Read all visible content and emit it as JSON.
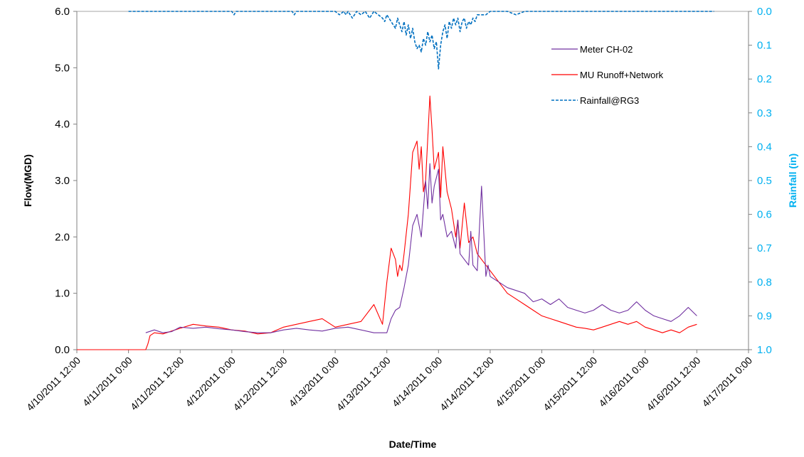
{
  "chart_data": {
    "type": "line",
    "xlabel": "Date/Time",
    "ylabel": "Flow(MGD)",
    "y2label": "Rainfall (in)",
    "ylim": [
      0,
      6
    ],
    "y2lim": [
      0,
      1.0
    ],
    "y2_inverted": true,
    "y_ticks": [
      "0.0",
      "1.0",
      "2.0",
      "3.0",
      "4.0",
      "5.0",
      "6.0"
    ],
    "y2_ticks": [
      "0.0",
      "0.1",
      "0.2",
      "0.3",
      "0.4",
      "0.5",
      "0.6",
      "0.7",
      "0.8",
      "0.9",
      "1.0"
    ],
    "x_ticks": [
      "4/10/2011 12:00",
      "4/11/2011 0:00",
      "4/11/2011 12:00",
      "4/12/2011 0:00",
      "4/12/2011 12:00",
      "4/13/2011 0:00",
      "4/13/2011 12:00",
      "4/14/2011 0:00",
      "4/14/2011 12:00",
      "4/15/2011 0:00",
      "4/15/2011 12:00",
      "4/16/2011 0:00",
      "4/16/2011 12:00",
      "4/17/2011 0:00"
    ],
    "xlim_hours": [
      0,
      156
    ],
    "legend_position": "top-right",
    "colors": {
      "meter": "#7030a0",
      "model": "#ff0000",
      "rain": "#0070c0",
      "right_axis": "#00b0f0"
    },
    "series": [
      {
        "name": "Meter CH-02",
        "axis": "left",
        "style": "solid",
        "x": [
          16,
          18,
          20,
          22,
          24,
          27,
          30,
          33,
          36,
          39,
          42,
          45,
          48,
          51,
          54,
          57,
          60,
          63,
          66,
          69,
          72,
          73,
          74,
          75,
          76,
          77,
          78,
          79,
          80,
          81,
          81.5,
          82,
          82.5,
          83,
          84,
          84.5,
          85,
          86,
          87,
          88,
          88.5,
          89,
          90,
          91,
          91.5,
          92,
          93,
          94,
          95,
          95.5,
          96,
          98,
          100,
          102,
          104,
          106,
          108,
          110,
          112,
          114,
          116,
          118,
          120,
          122,
          124,
          126,
          128,
          130,
          132,
          134,
          136,
          138,
          140,
          142,
          144
        ],
        "y": [
          0.3,
          0.35,
          0.3,
          0.32,
          0.4,
          0.38,
          0.4,
          0.37,
          0.35,
          0.32,
          0.3,
          0.3,
          0.35,
          0.38,
          0.35,
          0.33,
          0.38,
          0.4,
          0.35,
          0.3,
          0.3,
          0.55,
          0.7,
          0.75,
          1.1,
          1.5,
          2.2,
          2.4,
          2.0,
          3.0,
          2.5,
          3.3,
          2.6,
          2.9,
          3.2,
          2.3,
          2.4,
          2.0,
          2.1,
          1.8,
          2.3,
          1.7,
          1.6,
          1.5,
          2.1,
          1.5,
          1.4,
          2.9,
          1.3,
          1.5,
          1.3,
          1.2,
          1.1,
          1.05,
          1.0,
          0.85,
          0.9,
          0.8,
          0.9,
          0.75,
          0.7,
          0.65,
          0.7,
          0.8,
          0.7,
          0.65,
          0.7,
          0.85,
          0.7,
          0.6,
          0.55,
          0.5,
          0.6,
          0.75,
          0.6
        ]
      },
      {
        "name": "MU Runoff+Network",
        "axis": "left",
        "style": "solid",
        "x": [
          0,
          16,
          16.5,
          17,
          18,
          20,
          22,
          24,
          27,
          30,
          33,
          36,
          39,
          42,
          45,
          48,
          51,
          54,
          57,
          60,
          63,
          66,
          69,
          71,
          72,
          73,
          74,
          74.5,
          75,
          75.5,
          76,
          77,
          78,
          79,
          79.5,
          80,
          80.5,
          81,
          82,
          82.5,
          83,
          84,
          84.5,
          85,
          86,
          87,
          88,
          88.5,
          89,
          90,
          91,
          92,
          93,
          94,
          96,
          98,
          100,
          102,
          104,
          106,
          108,
          110,
          112,
          114,
          116,
          118,
          120,
          122,
          124,
          126,
          128,
          130,
          132,
          134,
          136,
          138,
          140,
          142,
          144
        ],
        "y": [
          0,
          0,
          0.1,
          0.25,
          0.3,
          0.28,
          0.33,
          0.38,
          0.45,
          0.42,
          0.4,
          0.35,
          0.33,
          0.28,
          0.3,
          0.4,
          0.45,
          0.5,
          0.55,
          0.4,
          0.45,
          0.5,
          0.8,
          0.45,
          1.2,
          1.8,
          1.6,
          1.3,
          1.5,
          1.4,
          1.7,
          2.4,
          3.5,
          3.7,
          3.2,
          3.6,
          2.8,
          3.0,
          4.5,
          3.9,
          3.2,
          3.5,
          2.7,
          3.6,
          2.8,
          2.5,
          2.0,
          2.3,
          1.8,
          2.6,
          1.9,
          2.0,
          1.7,
          1.6,
          1.4,
          1.2,
          1.0,
          0.9,
          0.8,
          0.7,
          0.6,
          0.55,
          0.5,
          0.45,
          0.4,
          0.38,
          0.35,
          0.4,
          0.45,
          0.5,
          0.45,
          0.5,
          0.4,
          0.35,
          0.3,
          0.35,
          0.3,
          0.4,
          0.45
        ]
      },
      {
        "name": "Rainfall@RG3",
        "axis": "right",
        "style": "dashed",
        "x": [
          12,
          36,
          36.5,
          37,
          50,
          50.5,
          51,
          60,
          61,
          62,
          62.5,
          63,
          64,
          65,
          66,
          67,
          68,
          69,
          70,
          71,
          71.5,
          72,
          73,
          74,
          74.5,
          75,
          75.5,
          76,
          76.5,
          77,
          77.5,
          78,
          78.5,
          79,
          79.5,
          80,
          80.5,
          81,
          81.5,
          82,
          82.5,
          83,
          83.5,
          84,
          84.5,
          85,
          85.5,
          86,
          86.5,
          87,
          87.5,
          88,
          88.5,
          89,
          89.5,
          90,
          90.5,
          91,
          91.5,
          92,
          92.5,
          93,
          94,
          95,
          96,
          98,
          100,
          102,
          104,
          108,
          112,
          120,
          132,
          144,
          148
        ],
        "y": [
          0,
          0,
          0.01,
          0,
          0,
          0.01,
          0,
          0,
          0.01,
          0,
          0.01,
          0,
          0.02,
          0,
          0.01,
          0,
          0.02,
          0,
          0.01,
          0.02,
          0.03,
          0.01,
          0.03,
          0.05,
          0.02,
          0.04,
          0.06,
          0.03,
          0.07,
          0.04,
          0.08,
          0.05,
          0.09,
          0.11,
          0.1,
          0.12,
          0.08,
          0.1,
          0.06,
          0.09,
          0.07,
          0.11,
          0.09,
          0.17,
          0.1,
          0.06,
          0.04,
          0.08,
          0.03,
          0.05,
          0.02,
          0.04,
          0.02,
          0.06,
          0.03,
          0.02,
          0.05,
          0.03,
          0.04,
          0.02,
          0.03,
          0.01,
          0.01,
          0.01,
          0,
          0,
          0,
          0.01,
          0,
          0,
          0,
          0,
          0,
          0,
          0
        ]
      }
    ]
  }
}
